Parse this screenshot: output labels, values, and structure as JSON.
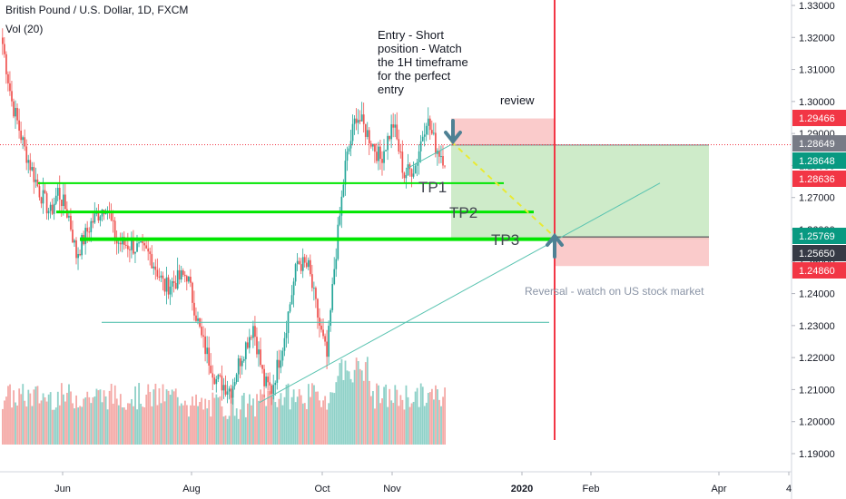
{
  "header": {
    "symbol_title": "British Pound / U.S. Dollar, 1D, FXCM",
    "indicator_label": "Vol (20)"
  },
  "colors": {
    "up": "#26a69a",
    "down": "#ef5350",
    "vol_up": "#8fd1c8",
    "vol_down": "#f4a9a6",
    "level_line": "#00e600",
    "reversal_line": "#f23645",
    "trend_line": "#58c3b0",
    "projection": "#e9ea33",
    "arrow": "#4e8194"
  },
  "chart_data": {
    "type": "candlestick",
    "y_axis": {
      "ylim": [
        1.185,
        1.331
      ],
      "ticks": [
        "1.33000",
        "1.32000",
        "1.31000",
        "1.30000",
        "1.29000",
        "1.28000",
        "1.27000",
        "1.26000",
        "1.25000",
        "1.24000",
        "1.23000",
        "1.22000",
        "1.21000",
        "1.20000",
        "1.19000"
      ]
    },
    "x_axis": {
      "ticks": [
        "Jun",
        "Aug",
        "Oct",
        "Nov",
        "2020",
        "Feb",
        "Apr",
        "4"
      ]
    },
    "price_labels": [
      {
        "value": "1.29466",
        "color": "#f23645"
      },
      {
        "value": "1.28649",
        "color": "#787b86"
      },
      {
        "value": "1.28648",
        "color": "#089981"
      },
      {
        "value": "1.28636",
        "color": "#f23645"
      },
      {
        "value": "1.25769",
        "color": "#089981"
      },
      {
        "value": "1.25650",
        "color": "#363a45"
      },
      {
        "value": "1.24860",
        "color": "#f23645"
      }
    ],
    "ohlc_anchor_closes": [
      [
        0,
        1.318
      ],
      [
        5,
        1.3
      ],
      [
        12,
        1.285
      ],
      [
        20,
        1.272
      ],
      [
        26,
        1.265
      ],
      [
        30,
        1.272
      ],
      [
        36,
        1.264
      ],
      [
        40,
        1.252
      ],
      [
        48,
        1.262
      ],
      [
        56,
        1.268
      ],
      [
        62,
        1.256
      ],
      [
        70,
        1.255
      ],
      [
        80,
        1.252
      ],
      [
        88,
        1.242
      ],
      [
        100,
        1.246
      ],
      [
        108,
        1.226
      ],
      [
        116,
        1.213
      ],
      [
        124,
        1.21
      ],
      [
        128,
        1.218
      ],
      [
        136,
        1.23
      ],
      [
        142,
        1.212
      ],
      [
        146,
        1.21
      ],
      [
        152,
        1.224
      ],
      [
        160,
        1.25
      ],
      [
        166,
        1.248
      ],
      [
        172,
        1.23
      ],
      [
        176,
        1.22
      ],
      [
        180,
        1.248
      ],
      [
        186,
        1.28
      ],
      [
        192,
        1.296
      ],
      [
        198,
        1.29
      ],
      [
        205,
        1.282
      ],
      [
        212,
        1.293
      ],
      [
        218,
        1.277
      ],
      [
        224,
        1.28
      ],
      [
        230,
        1.295
      ],
      [
        235,
        1.286
      ],
      [
        240,
        1.282
      ]
    ],
    "volume": {
      "overall_profile": "elevated early-summer, quieter in August, spike in October around the breakout",
      "max_relative": 1.0
    },
    "annotations": {
      "entry_note": [
        "Entry - Short",
        "position - Watch",
        "the 1H timeframe",
        "for the perfect",
        "entry"
      ],
      "review": "review",
      "tp1": "TP1",
      "tp2": "TP2",
      "tp3": "TP3",
      "reversal": "Reversal - watch on US stock market"
    },
    "levels": {
      "tp1": 1.2745,
      "tp2": 1.2655,
      "tp3": 1.257,
      "support": 1.231,
      "entry": 1.2864,
      "stop": 1.2947,
      "reversal_target_high": 1.2577,
      "reversal_stop": 1.2486
    },
    "grid": false
  }
}
